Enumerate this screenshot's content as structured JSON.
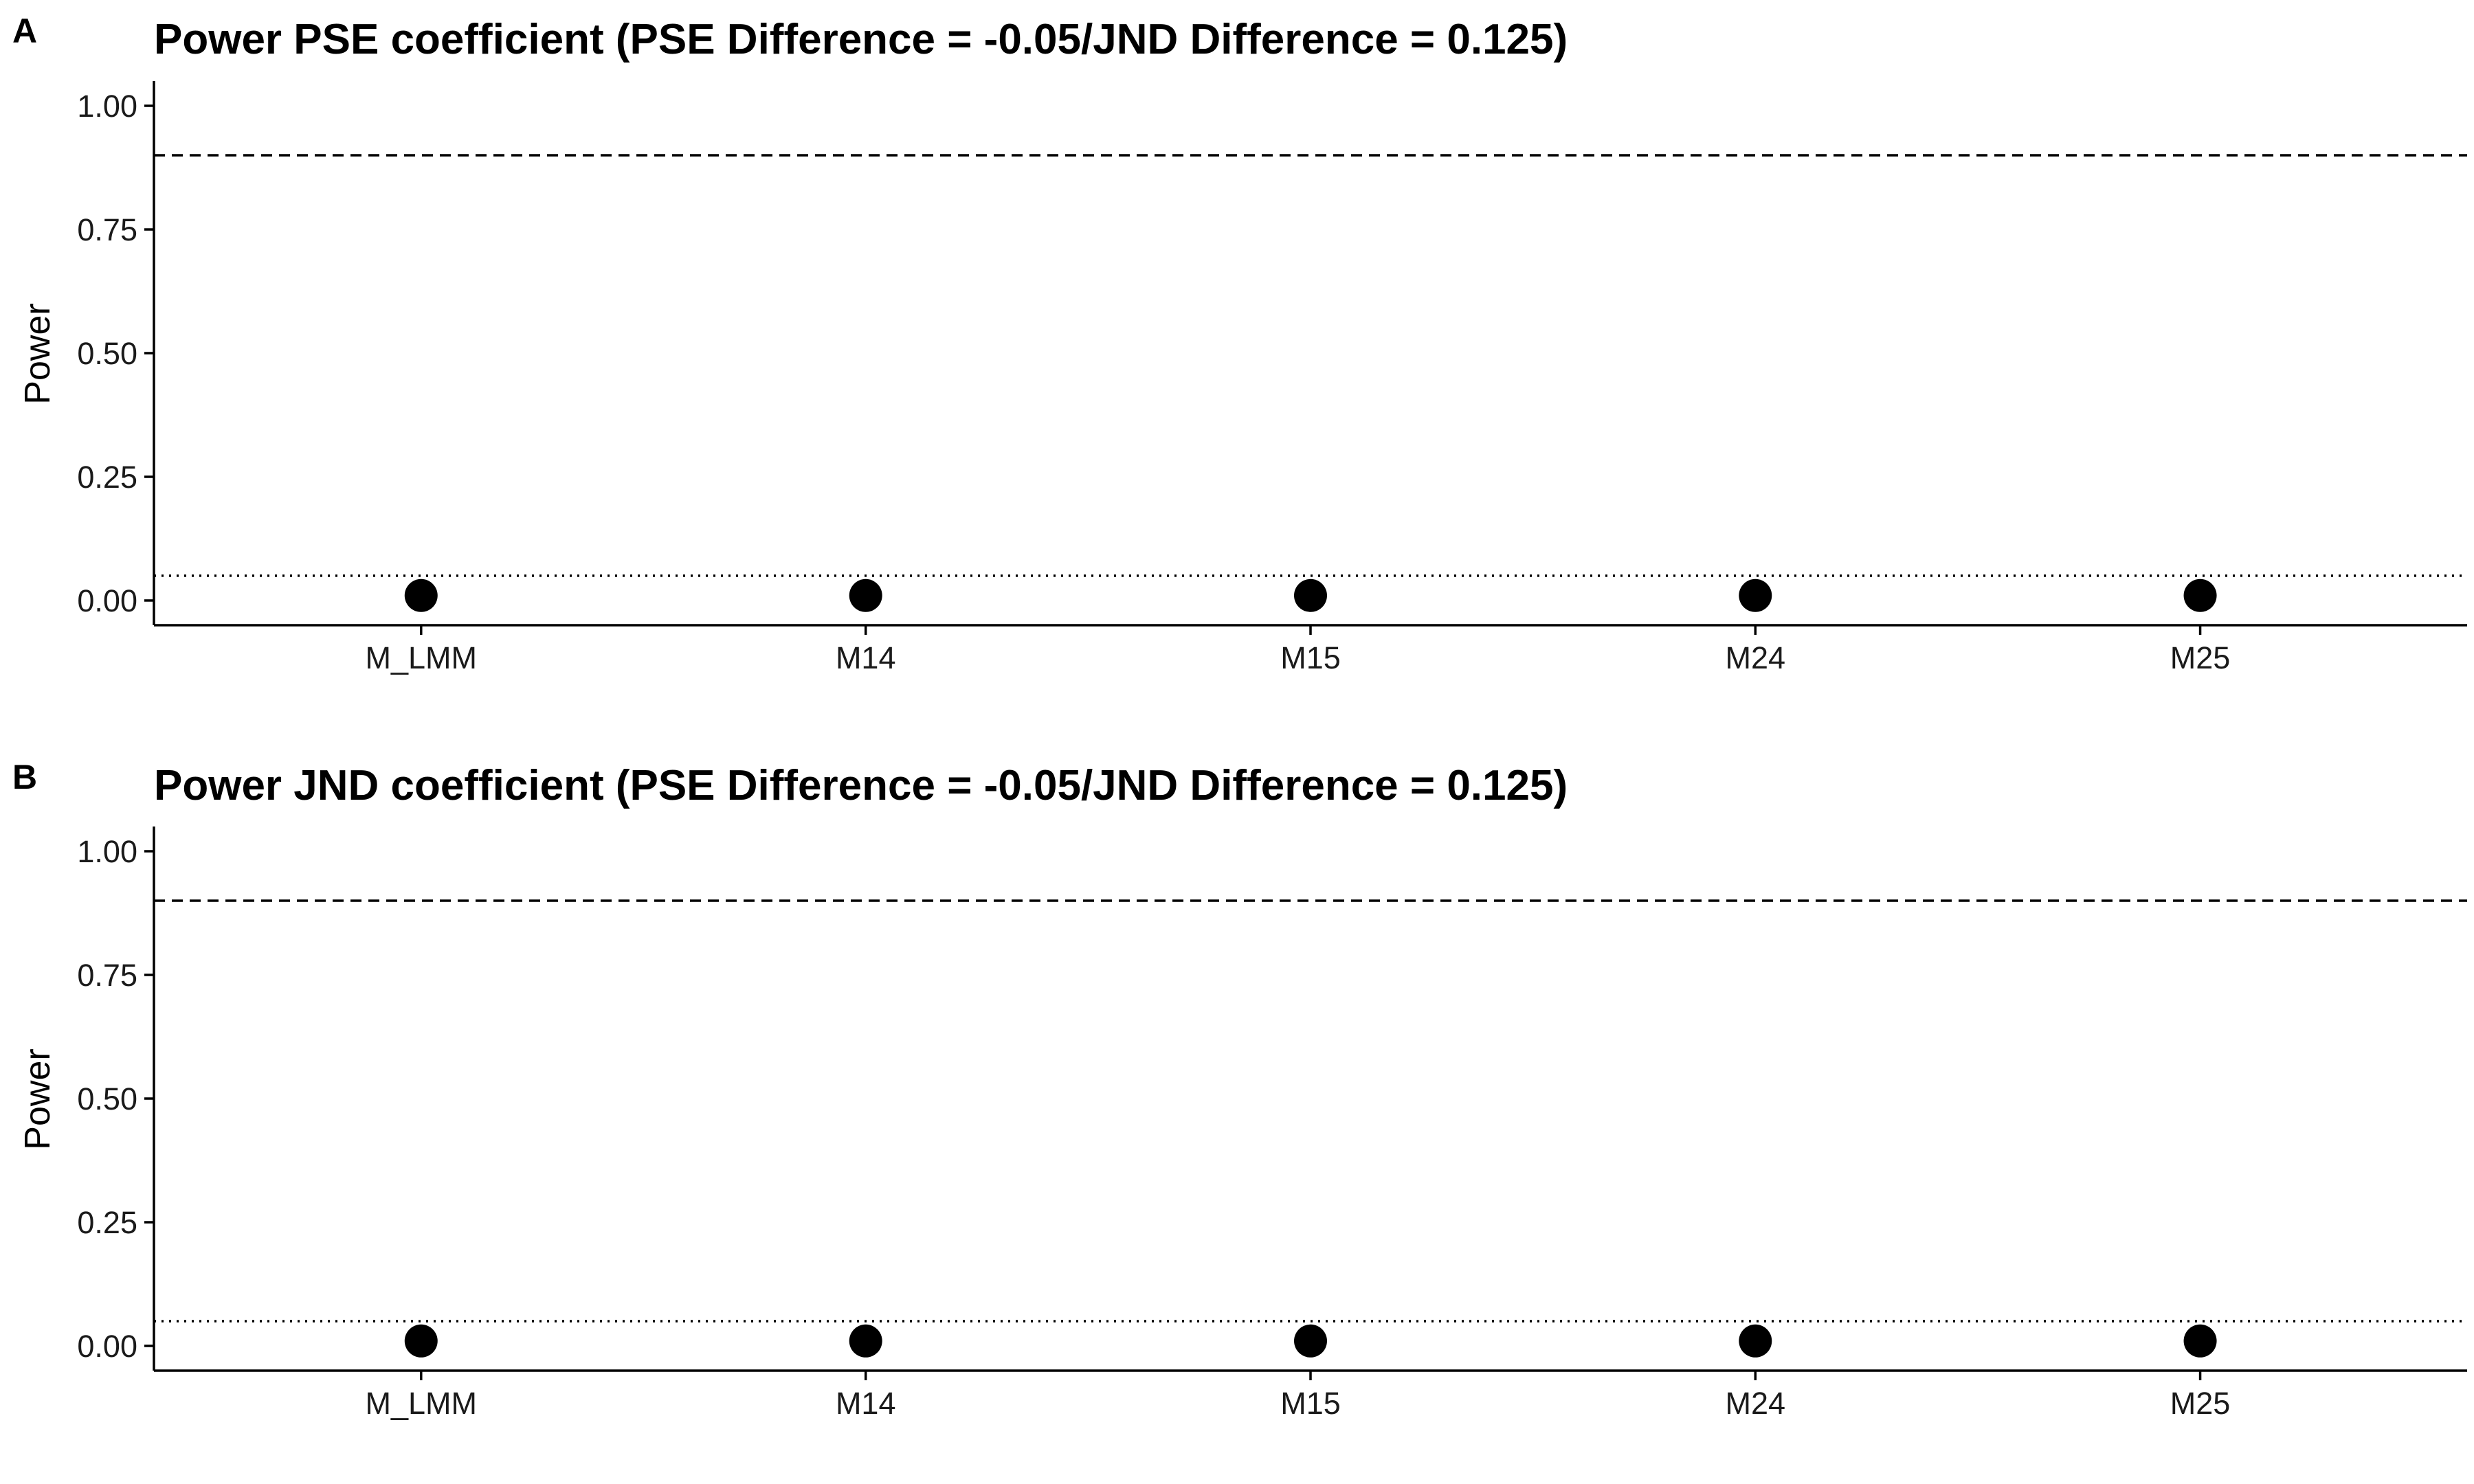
{
  "chart_data": [
    {
      "type": "scatter",
      "panel_label": "A",
      "title": "Power PSE coefficient (PSE Difference = -0.05/JND Difference = 0.125)",
      "xlabel": "",
      "ylabel": "Power",
      "categories": [
        "M_LMM",
        "M14",
        "M15",
        "M24",
        "M25"
      ],
      "values": [
        0.01,
        0.01,
        0.01,
        0.01,
        0.01
      ],
      "ylim": [
        0,
        1
      ],
      "yticks": [
        "0.00",
        "0.25",
        "0.50",
        "0.75",
        "1.00"
      ],
      "reference_lines": [
        {
          "y": 0.9,
          "style": "dashed"
        },
        {
          "y": 0.05,
          "style": "dotted"
        }
      ],
      "grid": false,
      "legend": "none"
    },
    {
      "type": "scatter",
      "panel_label": "B",
      "title": "Power JND coefficient (PSE Difference = -0.05/JND Difference = 0.125)",
      "xlabel": "",
      "ylabel": "Power",
      "categories": [
        "M_LMM",
        "M14",
        "M15",
        "M24",
        "M25"
      ],
      "values": [
        0.01,
        0.01,
        0.01,
        0.01,
        0.01
      ],
      "ylim": [
        0,
        1
      ],
      "yticks": [
        "0.00",
        "0.25",
        "0.50",
        "0.75",
        "1.00"
      ],
      "reference_lines": [
        {
          "y": 0.9,
          "style": "dashed"
        },
        {
          "y": 0.05,
          "style": "dotted"
        }
      ],
      "grid": false,
      "legend": "none"
    }
  ]
}
